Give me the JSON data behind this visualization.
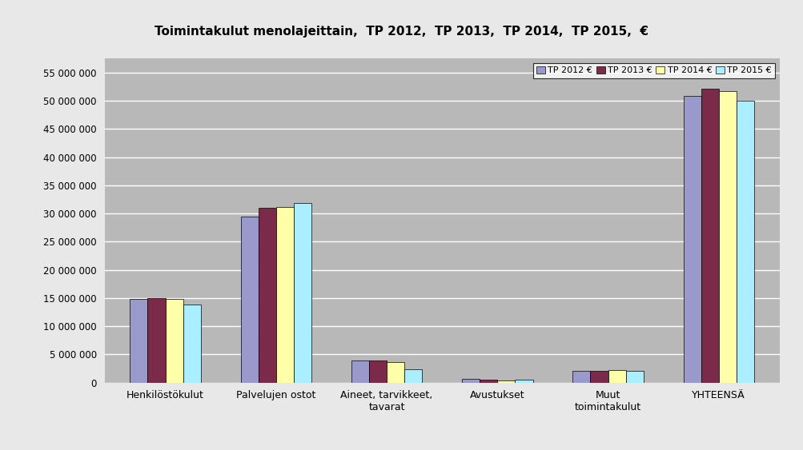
{
  "title": "Toimintakulut menolajeittain,  TP 2012,  TP 2013,  TP 2014,  TP 2015,  €",
  "categories": [
    "Henkilöstökulut",
    "Palvelujen ostot",
    "Aineet, tarvikkeet,\ntavarat",
    "Avustukset",
    "Muut\ntoimintakulut",
    "YHTEENSÄ"
  ],
  "series": [
    {
      "label": "TP 2012 €",
      "color": "#9999cc",
      "values": [
        14772375,
        29500000,
        3900000,
        650000,
        2100000,
        50800000
      ]
    },
    {
      "label": "TP 2013 €",
      "color": "#7b2a4a",
      "values": [
        15000000,
        31000000,
        3900000,
        450000,
        2000000,
        52200000
      ]
    },
    {
      "label": "TP 2014 €",
      "color": "#ffffaa",
      "values": [
        14900000,
        31200000,
        3600000,
        400000,
        2200000,
        51700000
      ]
    },
    {
      "label": "TP 2015 €",
      "color": "#aaeeff",
      "values": [
        13900000,
        31800000,
        2400000,
        500000,
        2100000,
        50000000
      ]
    }
  ],
  "ylim": [
    0,
    57500000
  ],
  "yticks": [
    0,
    5000000,
    10000000,
    15000000,
    20000000,
    25000000,
    30000000,
    35000000,
    40000000,
    45000000,
    50000000,
    55000000
  ],
  "outer_bg": "#e8e8e8",
  "plot_area_color": "#b8b8b8",
  "grid_color": "#ffffff",
  "bar_border_color": "#000000",
  "bar_width": 0.16,
  "figsize": [
    10.04,
    5.63
  ],
  "dpi": 100
}
